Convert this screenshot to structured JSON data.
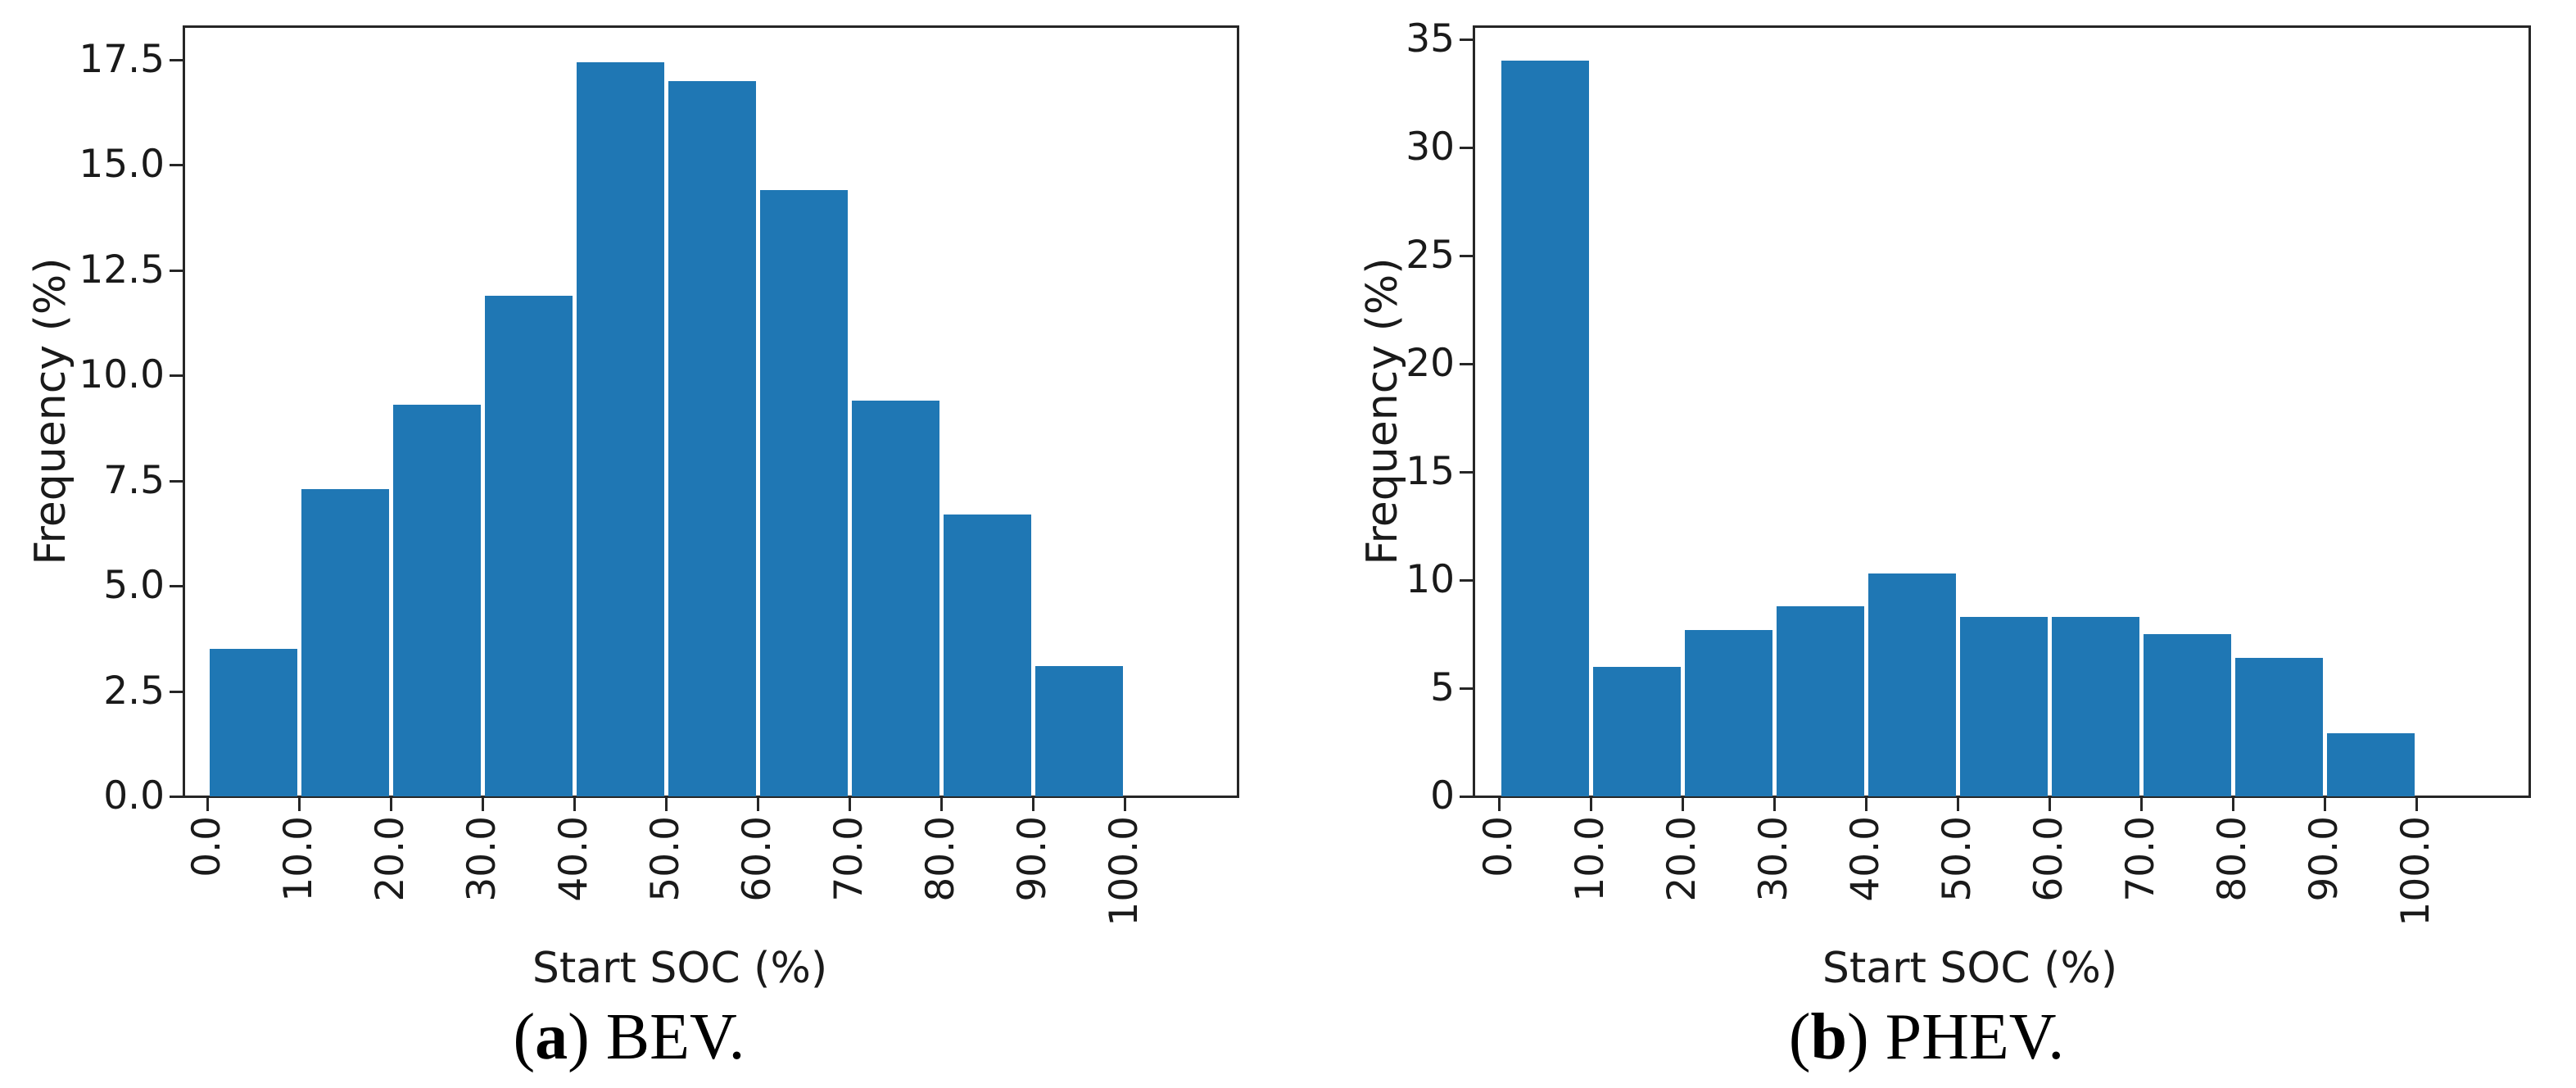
{
  "figure": {
    "bar_color": "#1f77b4",
    "spine_color": "#262626",
    "text_color": "#1a1a1a",
    "background": "#ffffff"
  },
  "chart_data": [
    {
      "type": "bar",
      "panel": "a",
      "caption_prefix": "(",
      "caption_letter": "a",
      "caption_rest": ") BEV.",
      "xlabel": "Start SOC (%)",
      "ylabel": "Frequency (%)",
      "bin_edges": [
        0,
        10,
        20,
        30,
        40,
        50,
        60,
        70,
        80,
        90,
        100
      ],
      "values": [
        3.5,
        7.3,
        9.3,
        11.9,
        17.45,
        17.0,
        14.4,
        9.4,
        6.7,
        3.1
      ],
      "ylim": [
        0,
        18.3
      ],
      "xlim": [
        -2.5,
        112.3
      ],
      "grid": false,
      "legend": null,
      "yticks": [
        0,
        2.5,
        5,
        7.5,
        10,
        12.5,
        15,
        17.5
      ],
      "ytick_labels": [
        "0.0",
        "2.5",
        "5.0",
        "7.5",
        "10.0",
        "12.5",
        "15.0",
        "17.5"
      ],
      "xticks": [
        0,
        10,
        20,
        30,
        40,
        50,
        60,
        70,
        80,
        90,
        100
      ],
      "xtick_labels": [
        "0.0",
        "10.0",
        "20.0",
        "30.0",
        "40.0",
        "50.0",
        "60.0",
        "70.0",
        "80.0",
        "90.0",
        "100.0"
      ]
    },
    {
      "type": "bar",
      "panel": "b",
      "caption_prefix": "(",
      "caption_letter": "b",
      "caption_rest": ") PHEV.",
      "xlabel": "Start SOC (%)",
      "ylabel": "Frequency (%)",
      "bin_edges": [
        0,
        10,
        20,
        30,
        40,
        50,
        60,
        70,
        80,
        90,
        100
      ],
      "values": [
        34.0,
        6.0,
        7.7,
        8.8,
        10.3,
        8.3,
        8.3,
        7.5,
        6.4,
        2.9
      ],
      "ylim": [
        0,
        35.6
      ],
      "xlim": [
        -2.5,
        112.3
      ],
      "grid": false,
      "legend": null,
      "yticks": [
        0,
        5,
        10,
        15,
        20,
        25,
        30,
        35
      ],
      "ytick_labels": [
        "0",
        "5",
        "10",
        "15",
        "20",
        "25",
        "30",
        "35"
      ],
      "xticks": [
        0,
        10,
        20,
        30,
        40,
        50,
        60,
        70,
        80,
        90,
        100
      ],
      "xtick_labels": [
        "0.0",
        "10.0",
        "20.0",
        "30.0",
        "40.0",
        "50.0",
        "60.0",
        "70.0",
        "80.0",
        "90.0",
        "100.0"
      ]
    }
  ]
}
